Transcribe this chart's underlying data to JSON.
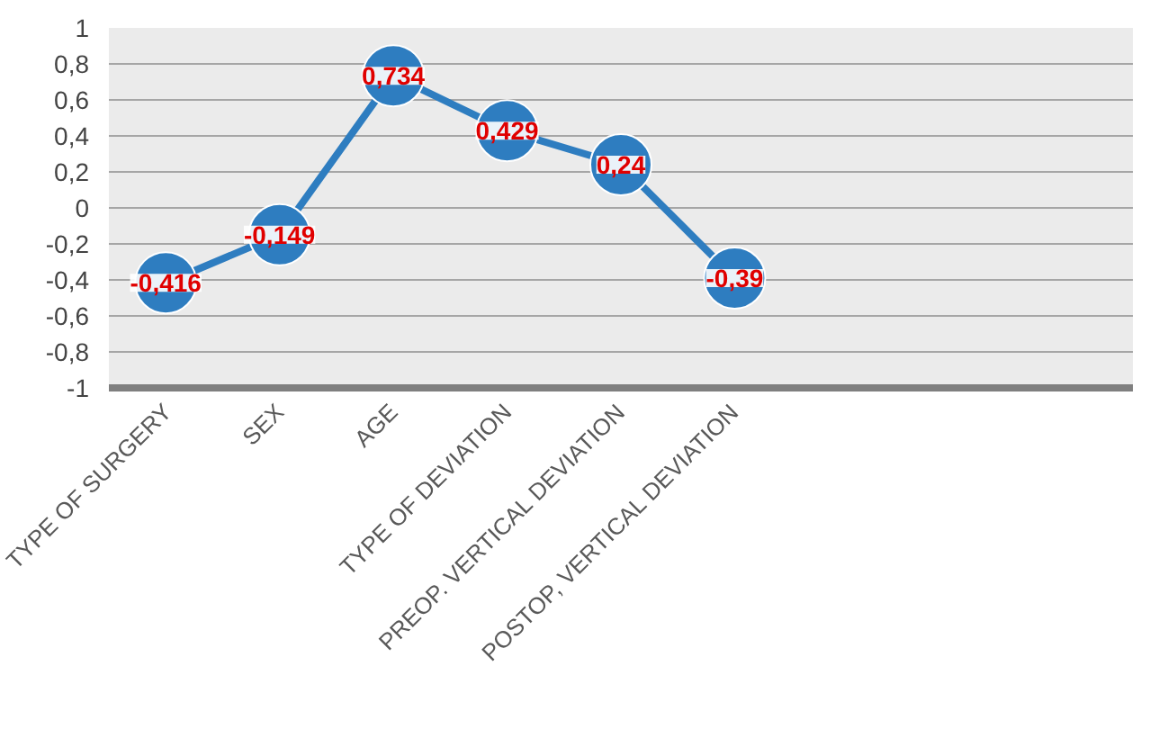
{
  "chart_data": {
    "type": "line",
    "categories": [
      "TYPE OF SURGERY",
      "SEX",
      "AGE",
      "TYPE OF DEVIATION",
      "PREOP. VERTICAL DEVIATION",
      "POSTOP, VERTICAL DEVIATION",
      null,
      null,
      null
    ],
    "series": [
      {
        "color": "#2e7dc0",
        "values": [
          -0.416,
          -0.149,
          0.734,
          0.429,
          0.24,
          -0.39,
          null,
          null,
          null
        ]
      }
    ],
    "value_labels": [
      "-0,416",
      "-0,149",
      "0,734",
      "0,429",
      "0,24",
      "-0,39",
      null,
      null,
      null
    ],
    "ylim": [
      -1,
      1
    ],
    "yticks": [
      {
        "value": -1,
        "label": "-1"
      },
      {
        "value": -0.8,
        "label": "-0,8"
      },
      {
        "value": -0.6,
        "label": "-0,6"
      },
      {
        "value": -0.4,
        "label": "-0,4"
      },
      {
        "value": -0.2,
        "label": "-0,2"
      },
      0,
      {
        "value": 0.2,
        "label": "0,2"
      },
      {
        "value": 0.4,
        "label": "0,4"
      },
      {
        "value": 0.6,
        "label": "0,6"
      },
      {
        "value": 0.8,
        "label": "0,8"
      },
      1
    ],
    "grid": "y",
    "marker": "circle",
    "line_style": "solid"
  }
}
